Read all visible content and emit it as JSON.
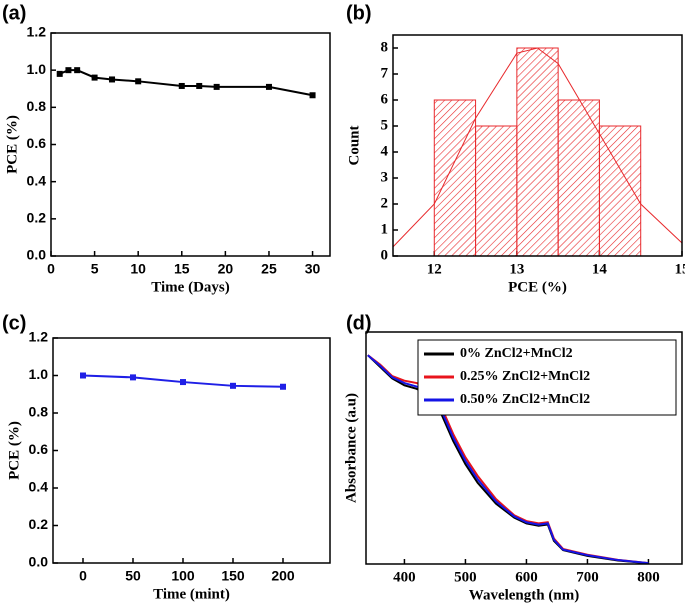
{
  "chart_data": [
    {
      "type": "line",
      "panel_label": "(a)",
      "x_label": "Time (Days)",
      "y_label": "PCE (%)",
      "x": [
        1,
        2,
        3,
        5,
        7,
        10,
        15,
        17,
        19,
        25,
        30
      ],
      "values": [
        0.98,
        1.0,
        1.0,
        0.96,
        0.95,
        0.94,
        0.915,
        0.915,
        0.91,
        0.91,
        0.865
      ],
      "color": "#000000",
      "marker": "square",
      "xlim": [
        0,
        32
      ],
      "ylim": [
        0,
        1.2
      ],
      "xticks": [
        0,
        5,
        10,
        15,
        20,
        25,
        30
      ],
      "yticks": [
        {
          "value": 0,
          "label": "0.0"
        },
        0.2,
        0.4,
        0.6,
        0.8,
        {
          "value": 1,
          "label": "1.0"
        },
        1.2
      ]
    },
    {
      "type": "histogram",
      "panel_label": "(b)",
      "x_label": "PCE (%)",
      "y_label": "Count",
      "bins": [
        12,
        12.5,
        13,
        13.5,
        14,
        14.5
      ],
      "values": [
        6,
        5,
        8,
        6,
        5
      ],
      "color": "#e8292c",
      "fit": {
        "x": [
          11.5,
          12,
          12.5,
          13,
          13.25,
          13.5,
          14,
          14.5,
          15
        ],
        "values": [
          0.35,
          2.0,
          5.3,
          7.8,
          8.0,
          7.4,
          4.7,
          2.0,
          0.5
        ]
      },
      "xlim": [
        11.5,
        15
      ],
      "ylim": [
        0,
        8.5
      ],
      "xticks": [
        12,
        13,
        14,
        15
      ],
      "yticks": [
        0,
        1,
        2,
        3,
        4,
        5,
        6,
        7,
        8
      ]
    },
    {
      "type": "line",
      "panel_label": "(c)",
      "x_label": "Time (mint)",
      "y_label": "PCE (%)",
      "x": [
        0,
        50,
        100,
        150,
        200
      ],
      "values": [
        1.0,
        0.99,
        0.965,
        0.945,
        0.94
      ],
      "color": "#1f1fe6",
      "marker": "square",
      "xlim": [
        -30,
        247
      ],
      "ylim": [
        0,
        1.2
      ],
      "xticks": [
        0,
        50,
        100,
        150,
        200
      ],
      "yticks": [
        {
          "value": 0,
          "label": "0.0"
        },
        0.2,
        0.4,
        0.6,
        0.8,
        {
          "value": 1,
          "label": "1.0"
        },
        1.2
      ]
    },
    {
      "type": "line",
      "panel_label": "(d)",
      "x_label": "Wavelength (nm)",
      "y_label": "Absorbance (a.u)",
      "x": [
        340,
        360,
        380,
        400,
        420,
        440,
        460,
        480,
        500,
        520,
        550,
        580,
        600,
        620,
        635,
        645,
        660,
        700,
        750,
        800
      ],
      "series": [
        {
          "name": "0% ZnCl2+MnCl2",
          "color": "#000000",
          "values": [
            0.9,
            0.85,
            0.8,
            0.77,
            0.755,
            0.73,
            0.65,
            0.53,
            0.43,
            0.35,
            0.26,
            0.2,
            0.175,
            0.165,
            0.17,
            0.1,
            0.06,
            0.035,
            0.015,
            0.003
          ]
        },
        {
          "name": "0.25% ZnCl2+MnCl2",
          "color": "#e8141c",
          "values": [
            0.9,
            0.86,
            0.81,
            0.79,
            0.78,
            0.76,
            0.68,
            0.56,
            0.46,
            0.38,
            0.28,
            0.21,
            0.185,
            0.175,
            0.18,
            0.11,
            0.065,
            0.04,
            0.018,
            0.004
          ]
        },
        {
          "name": "0.50% ZnCl2+MnCl2",
          "color": "#1414e6",
          "values": [
            0.9,
            0.855,
            0.805,
            0.78,
            0.765,
            0.745,
            0.665,
            0.545,
            0.445,
            0.365,
            0.27,
            0.205,
            0.18,
            0.17,
            0.175,
            0.105,
            0.062,
            0.038,
            0.017,
            0.004
          ]
        }
      ],
      "xlim": [
        337,
        855
      ],
      "ylim": [
        0,
        1
      ],
      "xticks": [
        400,
        500,
        600,
        700,
        800
      ],
      "legend": "upper right"
    }
  ]
}
